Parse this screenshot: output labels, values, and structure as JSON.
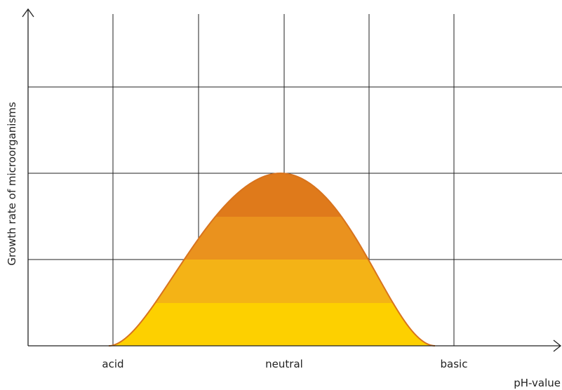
{
  "axes": {
    "y_label": "Growth rate of microorganisms",
    "x_label": "pH-value"
  },
  "x_labels": [
    "acid",
    "neutral",
    "basic"
  ]
}
